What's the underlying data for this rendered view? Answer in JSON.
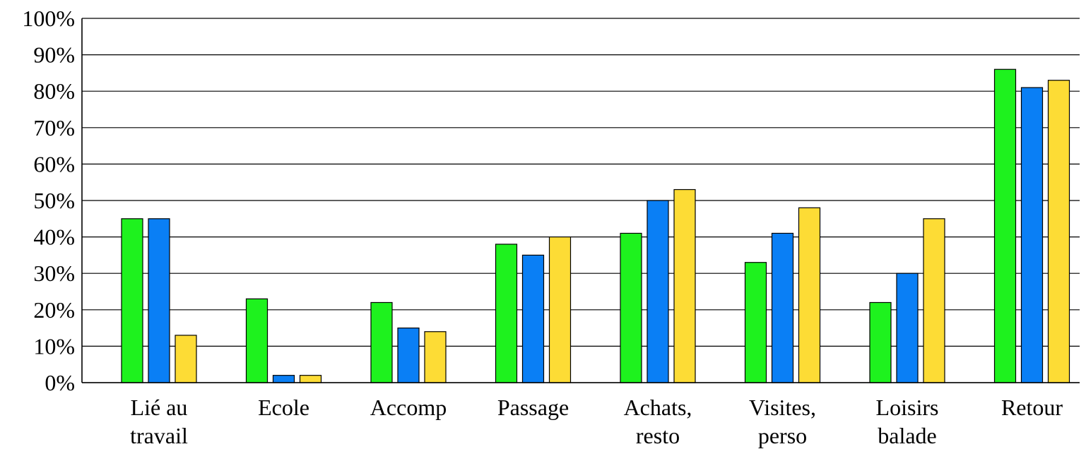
{
  "chart_data": {
    "type": "bar",
    "title": "",
    "xlabel": "",
    "ylabel": "",
    "ylim": [
      0,
      100
    ],
    "yticks": [
      "0%",
      "10%",
      "20%",
      "30%",
      "40%",
      "50%",
      "60%",
      "70%",
      "80%",
      "90%",
      "100%"
    ],
    "grid": true,
    "categories": [
      [
        "Lié au",
        "travail"
      ],
      [
        "Ecole"
      ],
      [
        "Accomp"
      ],
      [
        "Passage"
      ],
      [
        "Achats,",
        "resto"
      ],
      [
        "Visites,",
        "perso"
      ],
      [
        "Loisirs",
        "balade"
      ],
      [
        "Retour"
      ]
    ],
    "series": [
      {
        "color": "#1ef21e",
        "values": [
          45,
          23,
          22,
          38,
          41,
          33,
          22,
          86
        ]
      },
      {
        "color": "#0a7ff5",
        "values": [
          45,
          2,
          15,
          35,
          50,
          41,
          30,
          81
        ]
      },
      {
        "color": "#fddc35",
        "values": [
          13,
          2,
          14,
          40,
          53,
          48,
          45,
          83
        ]
      }
    ]
  }
}
